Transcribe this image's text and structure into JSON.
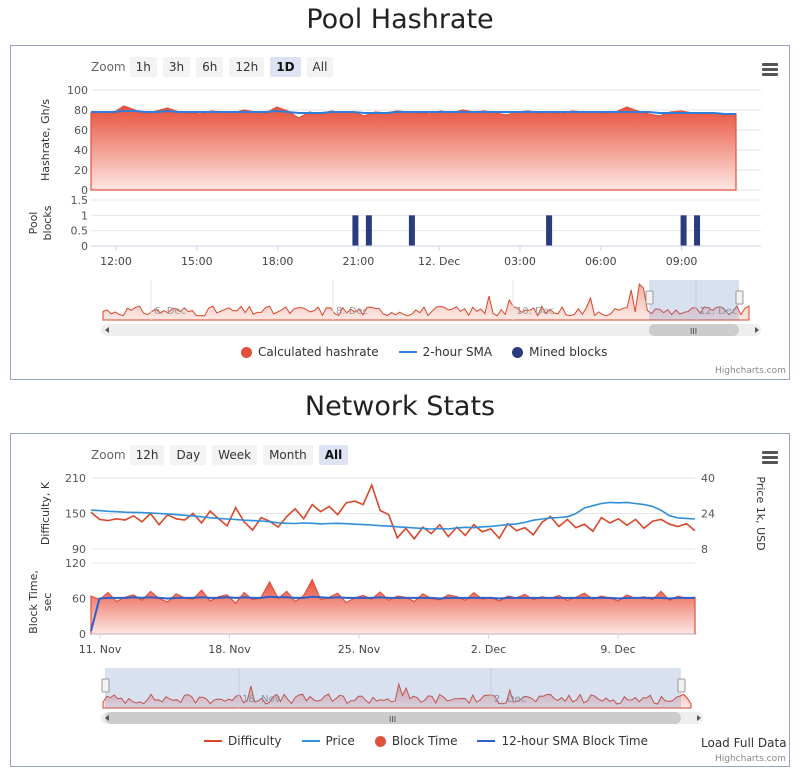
{
  "pool": {
    "title": "Pool Hashrate",
    "zoom_label": "Zoom",
    "zoom_buttons": [
      "1h",
      "3h",
      "6h",
      "12h",
      "1D",
      "All"
    ],
    "zoom_active": "1D",
    "legend": [
      {
        "name": "Calculated hashrate",
        "kind": "dot",
        "color": "#e0513d"
      },
      {
        "name": "2-hour SMA",
        "kind": "line",
        "color": "#2f7ed8"
      },
      {
        "name": "Mined blocks",
        "kind": "dot",
        "color": "#2b3b80"
      }
    ],
    "credit": "Highcharts.com",
    "navigator_labels": [
      "6. Dec",
      "8. Dec",
      "10. Dec",
      "12. Dec"
    ]
  },
  "network": {
    "title": "Network Stats",
    "zoom_label": "Zoom",
    "zoom_buttons": [
      "12h",
      "Day",
      "Week",
      "Month",
      "All"
    ],
    "zoom_active": "All",
    "legend": [
      {
        "name": "Difficulty",
        "kind": "line",
        "color": "#d9472b"
      },
      {
        "name": "Price",
        "kind": "line",
        "color": "#2f8fd8"
      },
      {
        "name": "Block Time",
        "kind": "dot",
        "color": "#e0513d"
      },
      {
        "name": "12-hour SMA Block Time",
        "kind": "line",
        "color": "#2f5fc8"
      }
    ],
    "load_full": "Load Full Data",
    "credit": "Highcharts.com",
    "navigator_labels": [
      "18. Nov",
      "2. Dec"
    ]
  },
  "chart_data": [
    {
      "type": "area",
      "title": "Pool Hashrate",
      "ylabel": "Hashrate, Gh/s",
      "ylim": [
        0,
        100
      ],
      "yticks": [
        0,
        20,
        40,
        60,
        80,
        100
      ],
      "series": [
        {
          "name": "Calculated hashrate",
          "values": [
            77,
            78,
            77,
            84,
            80,
            76,
            79,
            82,
            78,
            77,
            76,
            79,
            78,
            77,
            80,
            78,
            77,
            83,
            79,
            72,
            78,
            76,
            79,
            77,
            78,
            74,
            78,
            77,
            79,
            78,
            77,
            76,
            79,
            77,
            80,
            78,
            79,
            77,
            75,
            78,
            79,
            77,
            78,
            76,
            79,
            78,
            78,
            77,
            78,
            83,
            79,
            76,
            74,
            78,
            79,
            77,
            76,
            77,
            75,
            76
          ]
        },
        {
          "name": "2-hour SMA",
          "values": [
            78,
            78,
            78,
            79,
            79,
            78,
            78,
            79,
            78,
            78,
            78,
            78,
            78,
            78,
            78,
            78,
            78,
            79,
            78,
            77,
            77,
            77,
            78,
            78,
            78,
            77,
            77,
            77,
            78,
            78,
            78,
            78,
            78,
            78,
            78,
            78,
            78,
            78,
            78,
            78,
            78,
            78,
            78,
            78,
            78,
            78,
            78,
            78,
            78,
            78,
            78,
            78,
            77,
            77,
            77,
            77,
            77,
            77,
            76,
            76
          ]
        }
      ]
    },
    {
      "type": "bar",
      "title": "",
      "ylabel": "Pool blocks",
      "ylim": [
        0,
        1.5
      ],
      "yticks": [
        0,
        0.5,
        1,
        1.5
      ],
      "x_tick_labels": [
        "12:00",
        "15:00",
        "18:00",
        "21:00",
        "12. Dec",
        "03:00",
        "06:00",
        "09:00"
      ],
      "series": [
        {
          "name": "Mined blocks",
          "x_hours": [
            8.9,
            9.4,
            11.0,
            16.1,
            21.1,
            21.6
          ],
          "values": [
            1,
            1,
            1,
            1,
            1,
            1
          ]
        }
      ]
    },
    {
      "type": "line",
      "title": "Network Stats",
      "ylabel": "Difficulty, K",
      "ylim": [
        90,
        210
      ],
      "yticks": [
        90,
        150,
        210
      ],
      "y2label": "Price 1k, USD",
      "y2lim": [
        8,
        40
      ],
      "y2ticks": [
        8,
        24,
        40
      ],
      "series": [
        {
          "name": "Difficulty",
          "values": [
            152,
            140,
            138,
            141,
            139,
            146,
            136,
            150,
            131,
            148,
            141,
            139,
            150,
            134,
            154,
            141,
            129,
            160,
            136,
            122,
            143,
            137,
            127,
            145,
            158,
            141,
            165,
            153,
            162,
            148,
            168,
            171,
            165,
            198,
            155,
            148,
            109,
            125,
            107,
            127,
            116,
            131,
            111,
            127,
            113,
            131,
            119,
            124,
            108,
            133,
            121,
            126,
            114,
            135,
            145,
            128,
            140,
            126,
            132,
            120,
            143,
            134,
            141,
            130,
            140,
            125,
            137,
            140,
            132,
            128,
            133,
            121
          ]
        },
        {
          "name": "Price",
          "axis": "right",
          "values": [
            25.5,
            25.3,
            25.0,
            24.8,
            24.6,
            24.5,
            24.4,
            24.2,
            24.0,
            23.8,
            23.5,
            23.2,
            22.9,
            22.5,
            22.1,
            21.8,
            21.5,
            21.3,
            21.0,
            20.8,
            20.6,
            20.3,
            19.8,
            19.6,
            19.5,
            19.7,
            19.6,
            19.3,
            19.5,
            19.6,
            19.4,
            19.2,
            19.0,
            18.8,
            18.5,
            18.3,
            18.0,
            17.8,
            17.5,
            17.3,
            17.0,
            17.2,
            17.0,
            17.5,
            17.8,
            17.6,
            18.0,
            18.2,
            18.6,
            19.0,
            19.3,
            20.0,
            21.0,
            21.5,
            22.0,
            22.2,
            22.5,
            24.0,
            26.5,
            27.5,
            28.5,
            29.0,
            28.8,
            29.0,
            28.5,
            28.0,
            27.2,
            25.5,
            23.0,
            22.0,
            21.8,
            21.5
          ]
        }
      ]
    },
    {
      "type": "area",
      "title": "",
      "ylabel": "Block Time, sec",
      "ylim": [
        0,
        120
      ],
      "yticks": [
        0,
        60,
        120
      ],
      "x_tick_labels": [
        "11. Nov",
        "18. Nov",
        "25. Nov",
        "2. Dec",
        "9. Dec"
      ],
      "series": [
        {
          "name": "Block Time",
          "values": [
            64,
            58,
            70,
            55,
            62,
            66,
            57,
            72,
            60,
            54,
            68,
            61,
            59,
            74,
            56,
            63,
            66,
            52,
            70,
            58,
            62,
            88,
            60,
            72,
            55,
            65,
            92,
            58,
            62,
            69,
            53,
            61,
            65,
            59,
            71,
            57,
            64,
            62,
            55,
            68,
            60,
            58,
            66,
            63,
            57,
            70,
            59,
            62,
            56,
            64,
            61,
            67,
            58,
            63,
            60,
            65,
            57,
            62,
            69,
            59,
            64,
            61,
            56,
            66,
            60,
            63,
            58,
            72,
            57,
            64,
            60,
            62
          ]
        },
        {
          "name": "12-hour SMA Block Time",
          "values": [
            5,
            60,
            61,
            61,
            61,
            62,
            61,
            62,
            61,
            60,
            61,
            61,
            61,
            62,
            61,
            61,
            62,
            61,
            62,
            61,
            61,
            63,
            62,
            62,
            61,
            61,
            63,
            62,
            61,
            62,
            61,
            61,
            61,
            61,
            62,
            61,
            61,
            61,
            61,
            61,
            61,
            60,
            61,
            61,
            61,
            61,
            61,
            61,
            60,
            61,
            61,
            61,
            61,
            61,
            61,
            61,
            61,
            61,
            61,
            61,
            61,
            61,
            60,
            61,
            61,
            61,
            61,
            61,
            60,
            61,
            61,
            61
          ]
        }
      ]
    }
  ]
}
